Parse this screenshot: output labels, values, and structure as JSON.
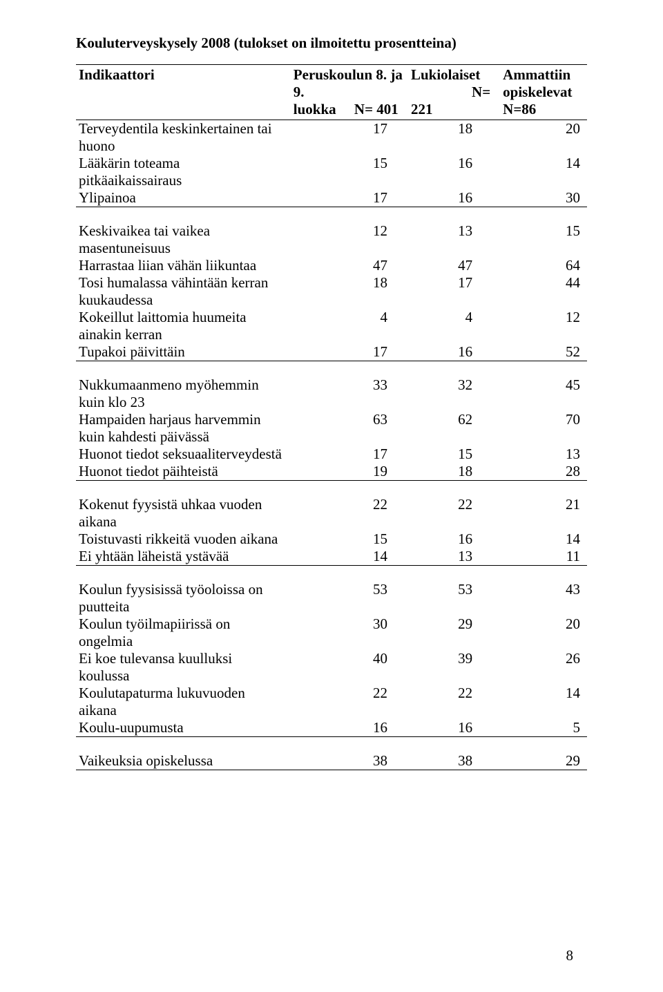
{
  "title": "Kouluterveyskysely 2008 (tulokset on ilmoitettu prosentteina)",
  "columns": {
    "c1": "Indikaattori",
    "c2a": "Peruskoulun 8. ja 9.",
    "c2b": "luokka     N= 401",
    "c3a": "Lukiolaiset",
    "c3b": "N=",
    "c3c": "221",
    "c4a": "Ammattiin",
    "c4b": "opiskelevat",
    "c4c": "N=86"
  },
  "sections": [
    {
      "rows": [
        {
          "label": "Terveydentila keskinkertainen tai huono",
          "v": [
            "17",
            "18",
            "20"
          ]
        },
        {
          "label": "Lääkärin toteama pitkäaikaissairaus",
          "v": [
            "15",
            "16",
            "14"
          ]
        },
        {
          "label": "Ylipainoa",
          "v": [
            "17",
            "16",
            "30"
          ]
        }
      ]
    },
    {
      "rows": [
        {
          "label": "Keskivaikea tai vaikea masentuneisuus",
          "v": [
            "12",
            "13",
            "15"
          ]
        },
        {
          "label": "Harrastaa liian vähän liikuntaa",
          "v": [
            "47",
            "47",
            "64"
          ]
        },
        {
          "label": "Tosi humalassa vähintään kerran kuukaudessa",
          "v": [
            "18",
            "17",
            "44"
          ]
        },
        {
          "label": "Kokeillut laittomia huumeita ainakin kerran",
          "v": [
            "4",
            "4",
            "12"
          ]
        },
        {
          "label": "Tupakoi päivittäin",
          "v": [
            "17",
            "16",
            "52"
          ]
        }
      ]
    },
    {
      "rows": [
        {
          "label": "Nukkumaanmeno myöhemmin kuin klo 23",
          "v": [
            "33",
            "32",
            "45"
          ]
        },
        {
          "label": "Hampaiden harjaus harvemmin kuin kahdesti päivässä",
          "v": [
            "63",
            "62",
            "70"
          ]
        },
        {
          "label": "Huonot tiedot seksuaaliterveydestä",
          "v": [
            "17",
            "15",
            "13"
          ]
        },
        {
          "label": "Huonot tiedot päihteistä",
          "v": [
            "19",
            "18",
            "28"
          ]
        }
      ]
    },
    {
      "rows": [
        {
          "label": "Kokenut fyysistä uhkaa vuoden aikana",
          "v": [
            "22",
            "22",
            "21"
          ]
        },
        {
          "label": "Toistuvasti rikkeitä vuoden aikana",
          "v": [
            "15",
            "16",
            "14"
          ]
        },
        {
          "label": "Ei yhtään läheistä ystävää",
          "v": [
            "14",
            "13",
            "11"
          ]
        }
      ]
    },
    {
      "rows": [
        {
          "label": "Koulun fyysisissä työoloissa on puutteita",
          "v": [
            "53",
            "53",
            "43"
          ]
        },
        {
          "label": "Koulun työilmapiirissä on ongelmia",
          "v": [
            "30",
            "29",
            "20"
          ]
        },
        {
          "label": "Ei koe tulevansa kuulluksi koulussa",
          "v": [
            "40",
            "39",
            "26"
          ]
        },
        {
          "label": "Koulutapaturma lukuvuoden aikana",
          "v": [
            "22",
            "22",
            "14"
          ]
        },
        {
          "label": "Koulu-uupumusta",
          "v": [
            "16",
            "16",
            "5"
          ]
        }
      ]
    },
    {
      "rows": [
        {
          "label": "Vaikeuksia opiskelussa",
          "v": [
            "38",
            "38",
            "29"
          ]
        }
      ]
    }
  ],
  "page_number": "8"
}
